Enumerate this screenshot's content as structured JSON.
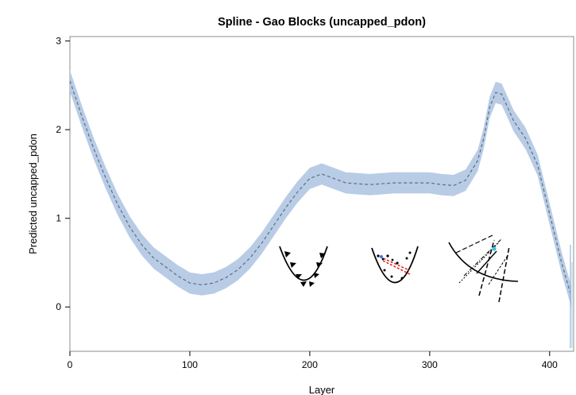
{
  "chart_data": {
    "type": "line",
    "title": "Spline - Gao Blocks (uncapped_pdon)",
    "xlabel": "Layer",
    "ylabel": "Predicted uncapped_pdon",
    "xlim": [
      0,
      420
    ],
    "ylim": [
      -0.5,
      3.05
    ],
    "x_ticks": [
      0,
      100,
      200,
      300,
      400
    ],
    "y_ticks": [
      0,
      1,
      2,
      3
    ],
    "grid": false,
    "legend": "none",
    "series": [
      {
        "x": [
          0,
          10,
          20,
          30,
          40,
          50,
          60,
          70,
          80,
          90,
          100,
          110,
          120,
          130,
          140,
          150,
          160,
          170,
          180,
          190,
          200,
          210,
          220,
          230,
          240,
          250,
          260,
          270,
          280,
          290,
          300,
          310,
          320,
          330,
          340,
          345,
          350,
          355,
          360,
          365,
          370,
          380,
          390,
          400,
          410,
          418
        ],
        "y": [
          2.55,
          2.15,
          1.78,
          1.45,
          1.15,
          0.9,
          0.7,
          0.55,
          0.45,
          0.35,
          0.27,
          0.25,
          0.27,
          0.33,
          0.42,
          0.55,
          0.72,
          0.92,
          1.12,
          1.3,
          1.45,
          1.5,
          1.45,
          1.4,
          1.39,
          1.38,
          1.39,
          1.4,
          1.4,
          1.4,
          1.4,
          1.38,
          1.37,
          1.43,
          1.65,
          1.9,
          2.25,
          2.42,
          2.4,
          2.25,
          2.1,
          1.9,
          1.6,
          1.05,
          0.5,
          0.12
        ],
        "band_half_width": 0.12
      }
    ],
    "colors": {
      "band": "#b9cce6",
      "line": "#5c6f83"
    }
  },
  "annotations": {
    "inset_icons": [
      "blocks-in-valley-icon",
      "scatter-in-valley-icon",
      "crossing-lines-icon"
    ]
  }
}
